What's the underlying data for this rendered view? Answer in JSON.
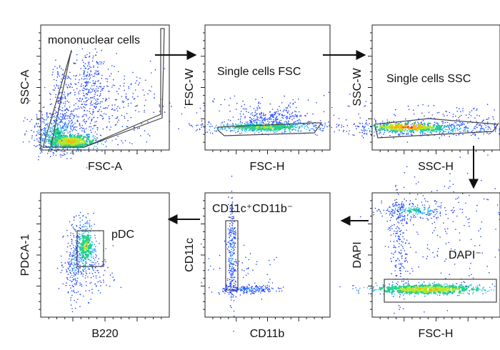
{
  "panels": [
    {
      "x_label": "FSC-A",
      "y_label": "SSC-A",
      "gate_label": "mononuclear cells"
    },
    {
      "x_label": "FSC-H",
      "y_label": "FSC-W",
      "gate_label": "Single cells FSC"
    },
    {
      "x_label": "SSC-H",
      "y_label": "SSC-W",
      "gate_label": "Single cells SSC"
    },
    {
      "x_label": "B220",
      "y_label": "PDCA-1",
      "gate_label": "pDC"
    },
    {
      "x_label": "CD11b",
      "y_label": "CD11c",
      "gate_label": "CD11c⁺CD11b⁻"
    },
    {
      "x_label": "FSC-H",
      "y_label": "DAPI",
      "gate_label": "DAPI⁻"
    }
  ]
}
